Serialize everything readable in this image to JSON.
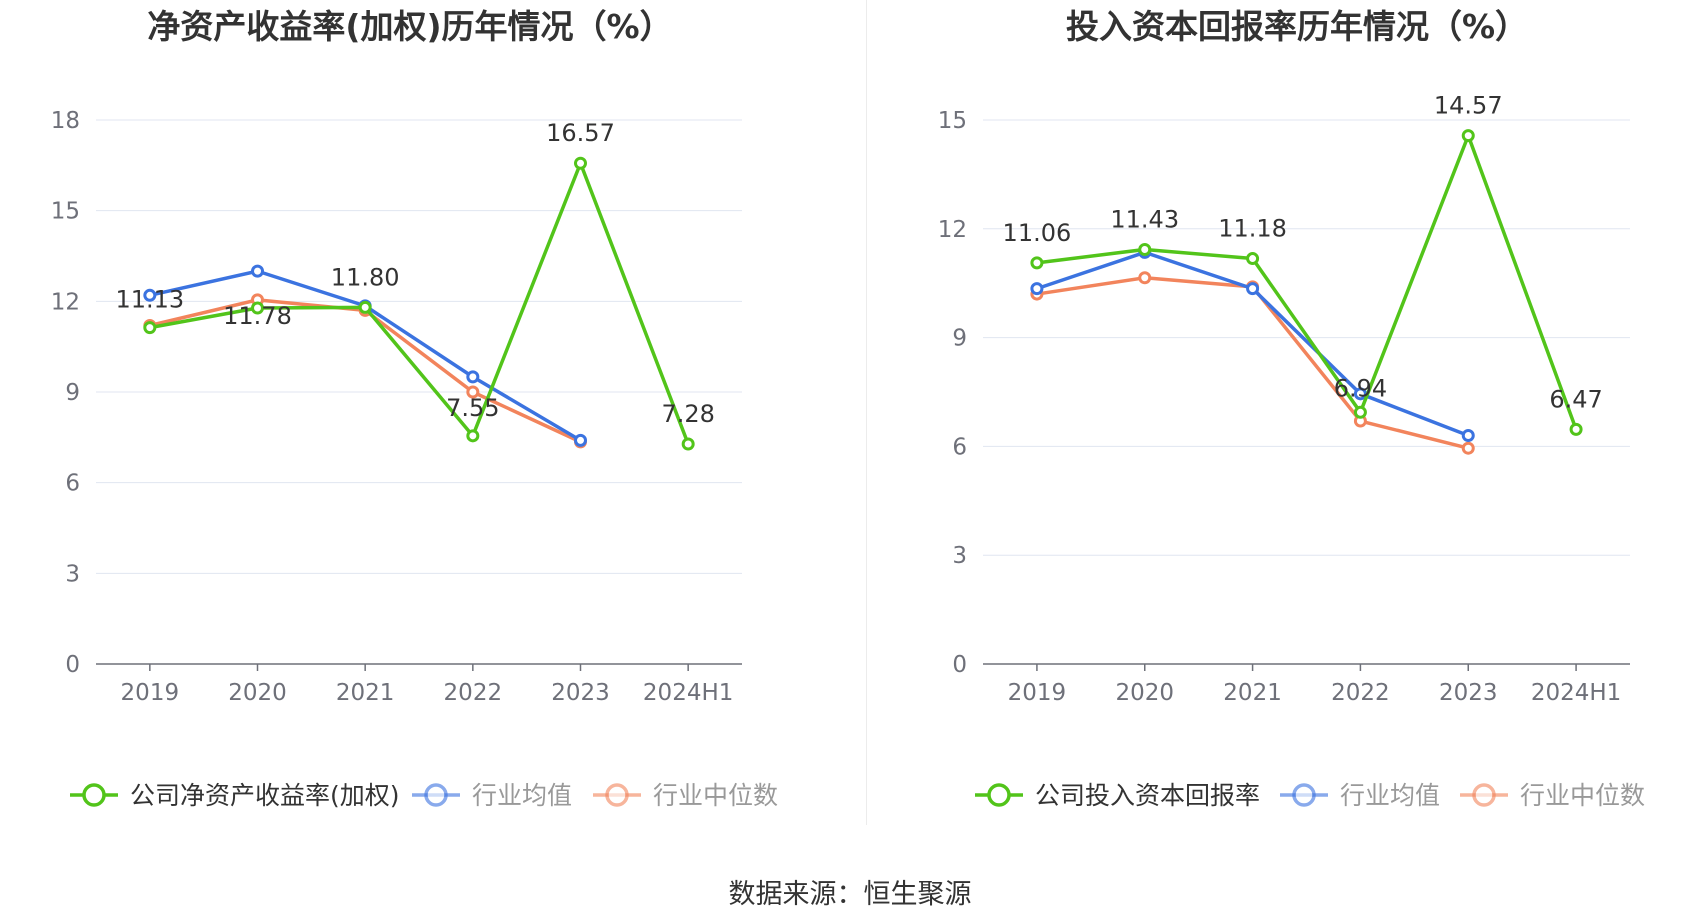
{
  "footer": {
    "source": "数据来源：恒生聚源"
  },
  "colors": {
    "company": "#52c41a",
    "average": "#3b73e0",
    "median": "#f2845c",
    "grid": "#e0e6f1",
    "axis": "#6e7079"
  },
  "chart_data": [
    {
      "type": "line",
      "title": "净资产收益率(加权)历年情况（%）",
      "categories": [
        "2019",
        "2020",
        "2021",
        "2022",
        "2023",
        "2024H1"
      ],
      "ylim": [
        0,
        18
      ],
      "yticks": [
        "0",
        "3",
        "6",
        "9",
        "12",
        "15",
        "18"
      ],
      "legend_position": "bottom",
      "series": [
        {
          "name": "公司净资产收益率(加权)",
          "color": "#52c41a",
          "values": [
            11.13,
            11.78,
            11.8,
            7.55,
            16.57,
            7.28
          ],
          "labels": [
            "11.13",
            "11.78",
            "11.80",
            "7.55",
            "16.57",
            "7.28"
          ]
        },
        {
          "name": "行业均值",
          "color": "#3b73e0",
          "values": [
            12.2,
            13.0,
            11.85,
            9.5,
            7.4,
            null
          ]
        },
        {
          "name": "行业中位数",
          "color": "#f2845c",
          "values": [
            11.2,
            12.05,
            11.7,
            9.0,
            7.35,
            null
          ]
        }
      ]
    },
    {
      "type": "line",
      "title": "投入资本回报率历年情况（%）",
      "categories": [
        "2019",
        "2020",
        "2021",
        "2022",
        "2023",
        "2024H1"
      ],
      "ylim": [
        0,
        15
      ],
      "yticks": [
        "0",
        "3",
        "6",
        "9",
        "12",
        "15"
      ],
      "legend_position": "bottom",
      "series": [
        {
          "name": "公司投入资本回报率",
          "color": "#52c41a",
          "values": [
            11.06,
            11.43,
            11.18,
            6.94,
            14.57,
            6.47
          ],
          "labels": [
            "11.06",
            "11.43",
            "11.18",
            "6.94",
            "14.57",
            "6.47"
          ]
        },
        {
          "name": "行业均值",
          "color": "#3b73e0",
          "values": [
            10.35,
            11.35,
            10.35,
            7.45,
            6.3,
            null
          ]
        },
        {
          "name": "行业中位数",
          "color": "#f2845c",
          "values": [
            10.2,
            10.65,
            10.4,
            6.7,
            5.95,
            null
          ]
        }
      ]
    }
  ]
}
